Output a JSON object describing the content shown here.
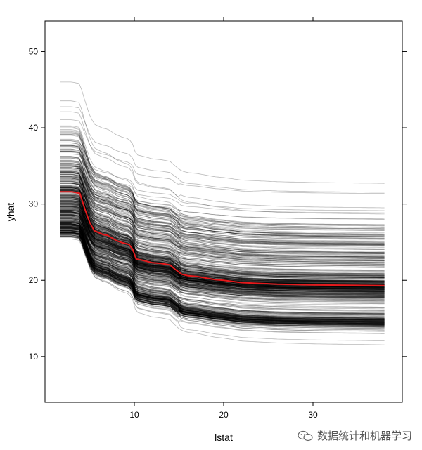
{
  "chart_data": {
    "type": "line",
    "title": "",
    "xlabel": "lstat",
    "ylabel": "yhat",
    "xlim": [
      0,
      40
    ],
    "ylim": [
      4,
      54
    ],
    "x_ticks": [
      10,
      20,
      30
    ],
    "y_ticks": [
      10,
      20,
      30,
      40,
      50
    ],
    "grid": false,
    "legend": "none",
    "ice_curve_count": 506,
    "ice_line_color": "#000000",
    "average_line_color": "#e41a1c",
    "average_curve": {
      "x": [
        1.7,
        3.0,
        3.9,
        4.5,
        5.0,
        5.5,
        6.5,
        7.0,
        8.0,
        8.7,
        9.4,
        9.8,
        10.2,
        11.0,
        12.0,
        13.0,
        14.0,
        14.5,
        15.3,
        16.0,
        17.0,
        18.0,
        19.0,
        20.0,
        22.0,
        24.0,
        26.0,
        28.0,
        30.0,
        34.0,
        38.0
      ],
      "y": [
        31.6,
        31.6,
        31.4,
        29.2,
        27.6,
        26.5,
        26.0,
        25.9,
        25.2,
        24.9,
        24.7,
        24.1,
        22.8,
        22.6,
        22.3,
        22.2,
        22.0,
        21.5,
        20.8,
        20.6,
        20.5,
        20.3,
        20.1,
        20.0,
        19.7,
        19.6,
        19.5,
        19.45,
        19.4,
        19.35,
        19.3
      ]
    }
  },
  "watermark": {
    "icon": "wechat-icon",
    "text": "数据统计和机器学习"
  }
}
